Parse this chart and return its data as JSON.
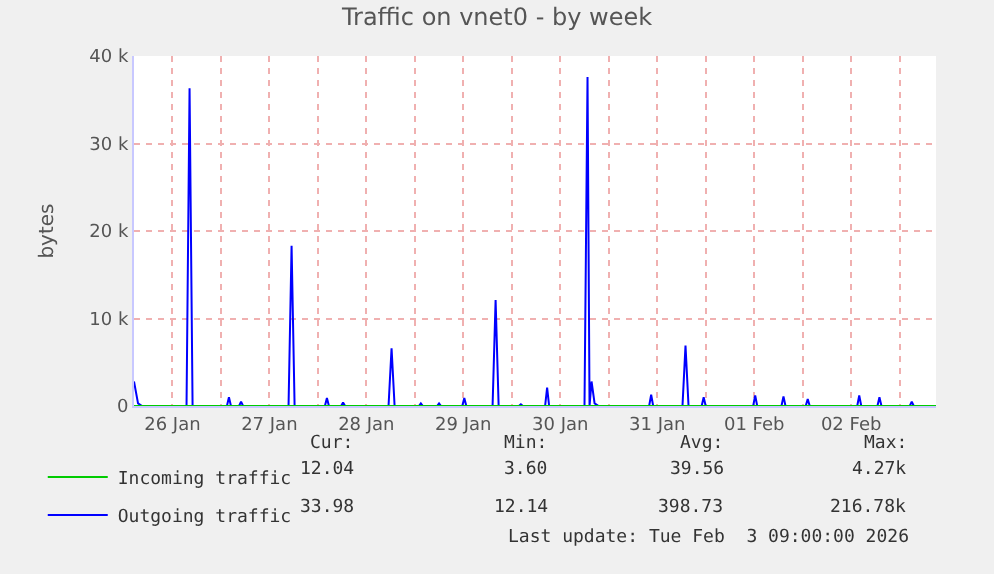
{
  "chart_data": {
    "type": "line",
    "title": "Traffic on vnet0 - by week",
    "ylabel": "bytes",
    "xlim": [
      "2026-01-26T02:30",
      "2026-02-03T09:00"
    ],
    "xticks": [
      {
        "value": "2026-01-26T12:00",
        "label": "26 Jan"
      },
      {
        "value": "2026-01-27T00:00",
        "label": null
      },
      {
        "value": "2026-01-27T12:00",
        "label": "27 Jan"
      },
      {
        "value": "2026-01-28T00:00",
        "label": null
      },
      {
        "value": "2026-01-28T12:00",
        "label": "28 Jan"
      },
      {
        "value": "2026-01-29T00:00",
        "label": null
      },
      {
        "value": "2026-01-29T12:00",
        "label": "29 Jan"
      },
      {
        "value": "2026-01-30T00:00",
        "label": null
      },
      {
        "value": "2026-01-30T12:00",
        "label": "30 Jan"
      },
      {
        "value": "2026-01-31T00:00",
        "label": null
      },
      {
        "value": "2026-01-31T12:00",
        "label": "31 Jan"
      },
      {
        "value": "2026-02-01T00:00",
        "label": null
      },
      {
        "value": "2026-02-01T12:00",
        "label": "01 Feb"
      },
      {
        "value": "2026-02-02T00:00",
        "label": null
      },
      {
        "value": "2026-02-02T12:00",
        "label": "02 Feb"
      },
      {
        "value": "2026-02-03T00:00",
        "label": null
      }
    ],
    "ylim": [
      0,
      40000
    ],
    "yticks": [
      0,
      {
        "value": 10000,
        "label": "10 k"
      },
      {
        "value": 20000,
        "label": "20 k"
      },
      {
        "value": 30000,
        "label": "30 k"
      },
      {
        "value": 40000,
        "label": "40 k"
      }
    ],
    "grid": true,
    "legend": "bottom left",
    "marker": "none",
    "line_style": "solid",
    "series": [
      {
        "name": "Incoming traffic",
        "color": "#00cc00",
        "x": [
          "2026-01-26T02:30",
          "2026-02-03T09:00"
        ],
        "values": [
          0,
          0
        ]
      },
      {
        "name": "Outgoing traffic",
        "color": "#0000ff",
        "x": [
          "2026-01-26T02:30",
          "2026-01-26T03:30",
          "2026-01-26T04:30",
          "2026-01-26T15:30",
          "2026-01-26T16:15",
          "2026-01-26T17:00",
          "2026-01-27T01:30",
          "2026-01-27T02:00",
          "2026-01-27T02:30",
          "2026-01-27T04:30",
          "2026-01-27T05:00",
          "2026-01-27T05:30",
          "2026-01-27T16:45",
          "2026-01-27T17:30",
          "2026-01-27T18:15",
          "2026-01-28T01:45",
          "2026-01-28T02:15",
          "2026-01-28T02:45",
          "2026-01-28T05:45",
          "2026-01-28T06:15",
          "2026-01-28T06:45",
          "2026-01-28T17:30",
          "2026-01-28T18:15",
          "2026-01-28T19:00",
          "2026-01-29T01:00",
          "2026-01-29T01:30",
          "2026-01-29T02:00",
          "2026-01-29T05:30",
          "2026-01-29T06:00",
          "2026-01-29T06:30",
          "2026-01-29T11:45",
          "2026-01-29T12:15",
          "2026-01-29T12:45",
          "2026-01-29T19:15",
          "2026-01-29T20:00",
          "2026-01-29T20:45",
          "2026-01-30T01:45",
          "2026-01-30T02:15",
          "2026-01-30T02:45",
          "2026-01-30T08:15",
          "2026-01-30T08:45",
          "2026-01-30T09:15",
          "2026-01-30T18:00",
          "2026-01-30T18:45",
          "2026-01-30T19:15",
          "2026-01-30T19:45",
          "2026-01-30T20:30",
          "2026-01-30T21:30",
          "2026-01-31T10:00",
          "2026-01-31T10:30",
          "2026-01-31T11:00",
          "2026-01-31T18:15",
          "2026-01-31T19:00",
          "2026-01-31T19:45",
          "2026-01-31T23:00",
          "2026-01-31T23:30",
          "2026-02-01T00:00",
          "2026-02-01T11:45",
          "2026-02-01T12:15",
          "2026-02-01T12:45",
          "2026-02-01T18:45",
          "2026-02-01T19:15",
          "2026-02-01T19:45",
          "2026-02-02T00:45",
          "2026-02-02T01:15",
          "2026-02-02T01:45",
          "2026-02-02T13:30",
          "2026-02-02T14:00",
          "2026-02-02T14:30",
          "2026-02-02T18:30",
          "2026-02-02T19:00",
          "2026-02-02T19:30",
          "2026-02-03T02:30",
          "2026-02-03T03:00",
          "2026-02-03T03:30",
          "2026-02-03T09:00"
        ],
        "values": [
          2800,
          300,
          0,
          0,
          36300,
          0,
          0,
          1000,
          0,
          0,
          500,
          0,
          0,
          18300,
          0,
          0,
          900,
          0,
          0,
          400,
          0,
          0,
          6600,
          0,
          0,
          300,
          0,
          0,
          300,
          0,
          0,
          900,
          0,
          0,
          12100,
          0,
          0,
          200,
          0,
          0,
          2100,
          0,
          0,
          37600,
          0,
          2800,
          300,
          0,
          0,
          1300,
          0,
          0,
          6900,
          0,
          0,
          1000,
          0,
          0,
          1200,
          0,
          0,
          1100,
          0,
          0,
          800,
          0,
          0,
          1200,
          0,
          0,
          1000,
          0,
          0,
          500,
          0,
          0
        ]
      }
    ],
    "annotations": [
      "Cur:",
      "Min:",
      "Avg:",
      "Max:",
      "12.04",
      "3.60",
      "39.56",
      "4.27k",
      "33.98",
      "12.14",
      "398.73",
      "216.78k",
      "Last update: Tue Feb  3 09:00:00 2026"
    ]
  }
}
